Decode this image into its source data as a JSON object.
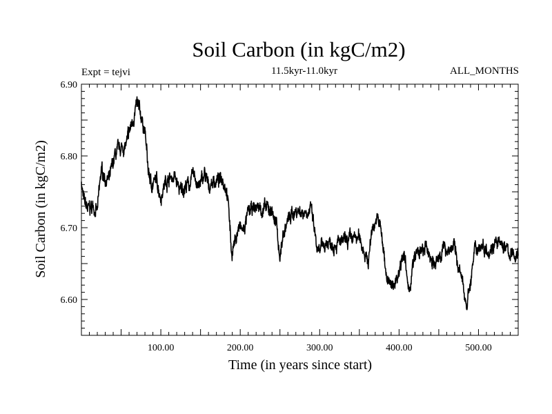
{
  "chart_data": {
    "type": "line",
    "title": "Soil Carbon (in kgC/m2)",
    "subtitle": "11.5kyr-11.0kyr",
    "left_annotation": "Expt = tejvi",
    "right_annotation": "ALL_MONTHS",
    "xlabel": "Time (in years since start)",
    "ylabel": "Soil Carbon (in kgC/m2)",
    "xlim": [
      0,
      550
    ],
    "ylim": [
      6.55,
      6.9
    ],
    "x_ticks": [
      100,
      200,
      300,
      400,
      500
    ],
    "x_tick_labels": [
      "100.00",
      "200.00",
      "300.00",
      "400.00",
      "500.00"
    ],
    "y_ticks": [
      6.6,
      6.7,
      6.8,
      6.9
    ],
    "y_tick_labels": [
      "6.60",
      "6.70",
      "6.80",
      "6.90"
    ],
    "line_color": "#000000",
    "series": [
      {
        "name": "Soil Carbon",
        "anchors": [
          [
            0,
            6.765
          ],
          [
            3,
            6.735
          ],
          [
            8,
            6.725
          ],
          [
            15,
            6.73
          ],
          [
            20,
            6.722
          ],
          [
            25,
            6.78
          ],
          [
            30,
            6.77
          ],
          [
            35,
            6.765
          ],
          [
            42,
            6.8
          ],
          [
            50,
            6.81
          ],
          [
            57,
            6.815
          ],
          [
            62,
            6.84
          ],
          [
            67,
            6.86
          ],
          [
            70,
            6.87
          ],
          [
            75,
            6.855
          ],
          [
            80,
            6.835
          ],
          [
            84,
            6.78
          ],
          [
            88,
            6.76
          ],
          [
            95,
            6.765
          ],
          [
            100,
            6.745
          ],
          [
            106,
            6.765
          ],
          [
            112,
            6.77
          ],
          [
            118,
            6.77
          ],
          [
            124,
            6.75
          ],
          [
            130,
            6.758
          ],
          [
            136,
            6.76
          ],
          [
            142,
            6.775
          ],
          [
            148,
            6.755
          ],
          [
            155,
            6.775
          ],
          [
            160,
            6.755
          ],
          [
            165,
            6.765
          ],
          [
            172,
            6.765
          ],
          [
            178,
            6.77
          ],
          [
            183,
            6.755
          ],
          [
            186,
            6.72
          ],
          [
            189,
            6.665
          ],
          [
            193,
            6.68
          ],
          [
            198,
            6.7
          ],
          [
            204,
            6.695
          ],
          [
            210,
            6.72
          ],
          [
            216,
            6.725
          ],
          [
            222,
            6.73
          ],
          [
            228,
            6.725
          ],
          [
            234,
            6.725
          ],
          [
            240,
            6.725
          ],
          [
            246,
            6.7
          ],
          [
            250,
            6.66
          ],
          [
            254,
            6.69
          ],
          [
            260,
            6.71
          ],
          [
            266,
            6.72
          ],
          [
            272,
            6.725
          ],
          [
            278,
            6.722
          ],
          [
            284,
            6.725
          ],
          [
            290,
            6.722
          ],
          [
            294,
            6.69
          ],
          [
            298,
            6.66
          ],
          [
            304,
            6.675
          ],
          [
            310,
            6.68
          ],
          [
            318,
            6.68
          ],
          [
            326,
            6.678
          ],
          [
            334,
            6.68
          ],
          [
            342,
            6.685
          ],
          [
            350,
            6.685
          ],
          [
            356,
            6.67
          ],
          [
            361,
            6.65
          ],
          [
            366,
            6.7
          ],
          [
            371,
            6.712
          ],
          [
            376,
            6.705
          ],
          [
            380,
            6.67
          ],
          [
            385,
            6.63
          ],
          [
            390,
            6.615
          ],
          [
            395,
            6.625
          ],
          [
            400,
            6.64
          ],
          [
            405,
            6.67
          ],
          [
            408,
            6.65
          ],
          [
            412,
            6.605
          ],
          [
            417,
            6.645
          ],
          [
            422,
            6.665
          ],
          [
            428,
            6.665
          ],
          [
            434,
            6.67
          ],
          [
            440,
            6.66
          ],
          [
            446,
            6.645
          ],
          [
            452,
            6.665
          ],
          [
            458,
            6.672
          ],
          [
            464,
            6.67
          ],
          [
            469,
            6.675
          ],
          [
            474,
            6.65
          ],
          [
            480,
            6.62
          ],
          [
            485,
            6.595
          ],
          [
            490,
            6.625
          ],
          [
            495,
            6.665
          ],
          [
            500,
            6.675
          ],
          [
            508,
            6.675
          ],
          [
            514,
            6.67
          ],
          [
            520,
            6.68
          ],
          [
            526,
            6.675
          ],
          [
            532,
            6.675
          ],
          [
            538,
            6.665
          ],
          [
            544,
            6.66
          ],
          [
            550,
            6.665
          ]
        ]
      }
    ]
  }
}
